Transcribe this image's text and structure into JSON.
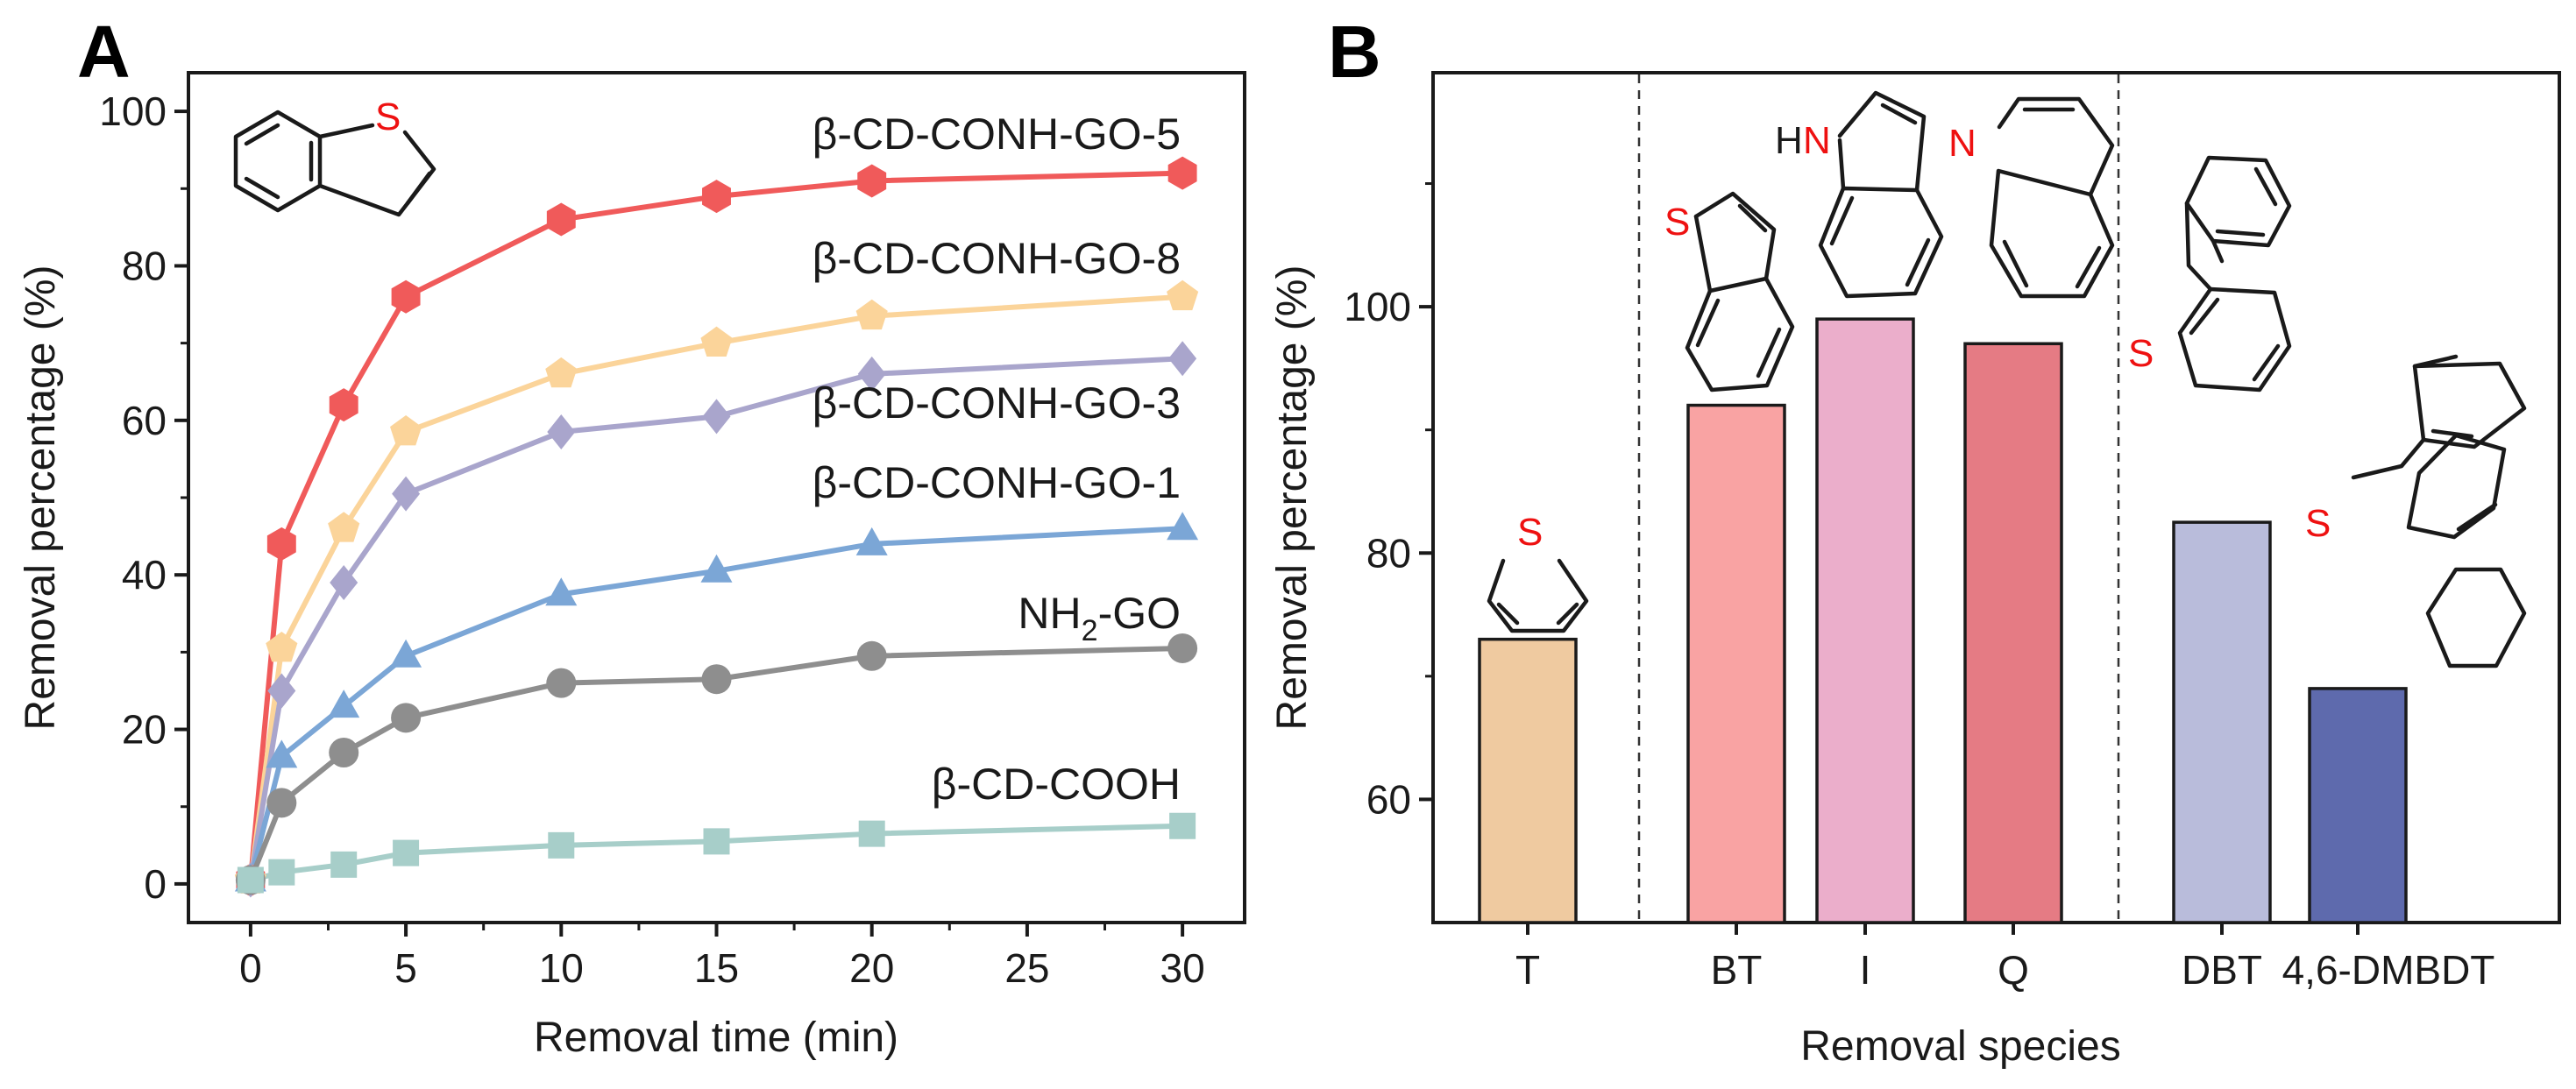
{
  "panels": {
    "left_letter": "A",
    "right_letter": "B"
  },
  "chart_data": [
    {
      "type": "line",
      "panel": "A",
      "title": "",
      "xlabel": "Removal time (min)",
      "ylabel": "Removal percentage (%)",
      "xlim": [
        -2,
        32
      ],
      "ylim": [
        -5,
        105
      ],
      "xticks": [
        0,
        5,
        10,
        15,
        20,
        25,
        30
      ],
      "yticks": [
        0,
        20,
        40,
        60,
        80,
        100
      ],
      "x": [
        0,
        1,
        3,
        5,
        10,
        15,
        20,
        30
      ],
      "inset_molecule": "benzothiophene",
      "inset_atom_label": "S",
      "series": [
        {
          "name": "β-CD-CONH-GO-5",
          "color": "#f05a5a",
          "marker": "hexagon",
          "values": [
            0.5,
            44,
            62,
            76,
            86,
            89,
            91,
            92
          ]
        },
        {
          "name": "β-CD-CONH-GO-8",
          "color": "#fbd49a",
          "marker": "pentagon",
          "values": [
            0.5,
            30.5,
            46,
            58.5,
            66,
            70,
            73.5,
            76
          ]
        },
        {
          "name": "β-CD-CONH-GO-3",
          "color": "#a9a5cc",
          "marker": "diamond",
          "values": [
            0.5,
            25,
            39,
            50.5,
            58.5,
            60.5,
            66,
            68
          ]
        },
        {
          "name": "β-CD-CONH-GO-1",
          "color": "#7ba6d6",
          "marker": "triangle",
          "values": [
            0.5,
            16.5,
            23,
            29.5,
            37.5,
            40.5,
            44,
            46
          ]
        },
        {
          "name": "NH",
          "name_sub": "2",
          "name_suffix": "-GO",
          "color": "#8e8e8e",
          "marker": "circle",
          "values": [
            0.5,
            10.5,
            17,
            21.5,
            26,
            26.5,
            29.5,
            30.5
          ]
        },
        {
          "name": "β-CD-COOH",
          "color": "#a7cec9",
          "marker": "square",
          "values": [
            0.5,
            1.5,
            2.5,
            4,
            5,
            5.5,
            6.5,
            7.5
          ]
        }
      ]
    },
    {
      "type": "bar",
      "panel": "B",
      "title": "",
      "xlabel": "Removal species",
      "ylabel": "Removal percentage (%)",
      "ylim": [
        50,
        119
      ],
      "yticks": [
        60,
        80,
        100
      ],
      "categories": [
        "T",
        "BT",
        "I",
        "Q",
        "DBT",
        "4,6-DMBDT"
      ],
      "values": [
        73,
        92,
        99,
        97,
        82.5,
        69
      ],
      "colors": [
        "#efcaa0",
        "#f9a3a3",
        "#ebaecb",
        "#e57b84",
        "#b9bcdb",
        "#5e6aad"
      ],
      "group_dividers": "dashed lines between T | BT, I, Q | DBT, 4,6-DMBDT",
      "molecule_atom_labels": [
        "S",
        "S",
        "H",
        "N",
        "N",
        "S",
        "S"
      ]
    }
  ]
}
